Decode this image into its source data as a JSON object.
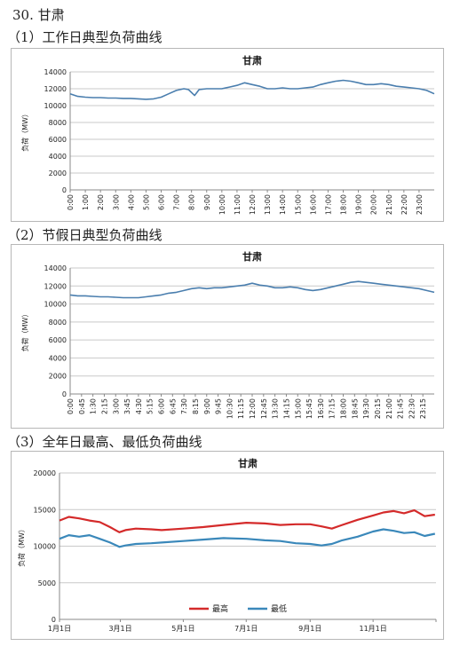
{
  "page": {
    "section_title": "30. 甘肃",
    "heading1": "（1）工作日典型负荷曲线",
    "heading2": "（2）节假日典型负荷曲线",
    "heading3": "（3）全年日最高、最低负荷曲线"
  },
  "chart_data": [
    {
      "type": "line",
      "title": "甘肃",
      "ylabel": "负荷（MW）",
      "ylim": [
        0,
        14000
      ],
      "yticks": [
        0,
        2000,
        4000,
        6000,
        8000,
        10000,
        12000,
        14000
      ],
      "grid": true,
      "xticklabels": [
        "0:00",
        "1:00",
        "2:00",
        "3:00",
        "4:00",
        "5:00",
        "6:00",
        "7:00",
        "8:00",
        "9:00",
        "10:00",
        "11:00",
        "12:00",
        "13:00",
        "14:00",
        "15:00",
        "16:00",
        "17:00",
        "18:00",
        "19:00",
        "20:00",
        "21:00",
        "22:00",
        "23:00"
      ],
      "series": [
        {
          "color": "#4a7eae",
          "x": [
            0,
            0.5,
            1,
            1.5,
            2,
            2.5,
            3,
            3.5,
            4,
            4.5,
            5,
            5.5,
            6,
            6.5,
            7,
            7.5,
            7.8,
            8.2,
            8.5,
            9,
            9.5,
            10,
            10.5,
            11,
            11.5,
            12,
            12.5,
            13,
            13.5,
            14,
            14.5,
            15,
            15.5,
            16,
            16.5,
            17,
            17.5,
            18,
            18.5,
            19,
            19.5,
            20,
            20.5,
            21,
            21.5,
            22,
            22.5,
            23,
            23.5,
            24
          ],
          "y": [
            11400,
            11100,
            11000,
            10950,
            10950,
            10900,
            10900,
            10850,
            10850,
            10800,
            10750,
            10800,
            11000,
            11400,
            11800,
            12000,
            11900,
            11200,
            11900,
            12000,
            12000,
            12000,
            12200,
            12400,
            12700,
            12500,
            12300,
            12000,
            12000,
            12100,
            12000,
            12000,
            12100,
            12200,
            12500,
            12700,
            12900,
            13000,
            12900,
            12700,
            12500,
            12500,
            12600,
            12500,
            12300,
            12200,
            12100,
            12000,
            11800,
            11400
          ]
        }
      ]
    },
    {
      "type": "line",
      "title": "甘肃",
      "ylabel": "负荷（MW）",
      "ylim": [
        0,
        14000
      ],
      "yticks": [
        0,
        2000,
        4000,
        6000,
        8000,
        10000,
        12000,
        14000
      ],
      "grid": true,
      "xticklabels": [
        "0:00",
        "0:45",
        "1:30",
        "2:15",
        "3:00",
        "3:45",
        "4:30",
        "5:15",
        "6:00",
        "6:45",
        "7:30",
        "8:15",
        "9:00",
        "9:45",
        "10:30",
        "11:15",
        "12:00",
        "12:45",
        "13:30",
        "14:15",
        "15:00",
        "15:45",
        "16:30",
        "17:15",
        "18:00",
        "18:45",
        "19:30",
        "20:15",
        "21:00",
        "21:45",
        "22:30",
        "23:15"
      ],
      "series": [
        {
          "color": "#4a7eae",
          "x": [
            0,
            0.5,
            1,
            1.5,
            2,
            2.5,
            3,
            3.5,
            4,
            4.5,
            5,
            5.5,
            6,
            6.5,
            7,
            7.5,
            8,
            8.5,
            9,
            9.5,
            10,
            10.5,
            11,
            11.5,
            12,
            12.5,
            13,
            13.5,
            14,
            14.5,
            15,
            15.5,
            16,
            16.5,
            17,
            17.5,
            18,
            18.5,
            19,
            19.5,
            20,
            20.5,
            21,
            21.5,
            22,
            22.5,
            23,
            23.5,
            24
          ],
          "y": [
            11000,
            10900,
            10900,
            10850,
            10800,
            10800,
            10750,
            10700,
            10700,
            10700,
            10800,
            10900,
            11000,
            11200,
            11300,
            11500,
            11700,
            11800,
            11700,
            11800,
            11800,
            11900,
            12000,
            12100,
            12300,
            12100,
            12000,
            11800,
            11800,
            11900,
            11800,
            11600,
            11500,
            11600,
            11800,
            12000,
            12200,
            12400,
            12500,
            12400,
            12300,
            12200,
            12100,
            12000,
            11900,
            11800,
            11700,
            11500,
            11300
          ]
        }
      ]
    },
    {
      "type": "line",
      "title": "甘肃",
      "ylabel": "负荷（MW）",
      "ylim": [
        0,
        20000
      ],
      "yticks": [
        0,
        5000,
        10000,
        15000,
        20000
      ],
      "grid": true,
      "legend_placement": "bottom",
      "xticklabels": [
        "1月1日",
        "3月1日",
        "5月1日",
        "7月1日",
        "9月1日",
        "11月1日"
      ],
      "series": [
        {
          "name": "最高",
          "color": "#d42a2a",
          "x": [
            1,
            10,
            20,
            30,
            40,
            50,
            59,
            65,
            75,
            90,
            100,
            121,
            140,
            160,
            182,
            200,
            215,
            230,
            244,
            255,
            265,
            275,
            290,
            305,
            315,
            325,
            335,
            345,
            355,
            365
          ],
          "y": [
            13500,
            14000,
            13800,
            13500,
            13300,
            12600,
            11900,
            12200,
            12400,
            12300,
            12200,
            12400,
            12600,
            12900,
            13200,
            13100,
            12900,
            13000,
            13000,
            12700,
            12400,
            12900,
            13600,
            14200,
            14600,
            14800,
            14500,
            14900,
            14100,
            14300
          ]
        },
        {
          "name": "最低",
          "color": "#3a88ba",
          "x": [
            1,
            10,
            20,
            30,
            40,
            50,
            59,
            65,
            75,
            90,
            100,
            121,
            140,
            160,
            182,
            200,
            215,
            230,
            244,
            255,
            265,
            275,
            290,
            305,
            315,
            325,
            335,
            345,
            355,
            365
          ],
          "y": [
            11000,
            11500,
            11300,
            11500,
            11000,
            10500,
            9900,
            10100,
            10300,
            10400,
            10500,
            10700,
            10900,
            11100,
            11000,
            10800,
            10700,
            10400,
            10300,
            10100,
            10300,
            10800,
            11300,
            12000,
            12300,
            12100,
            11800,
            11900,
            11400,
            11700
          ]
        }
      ]
    }
  ]
}
